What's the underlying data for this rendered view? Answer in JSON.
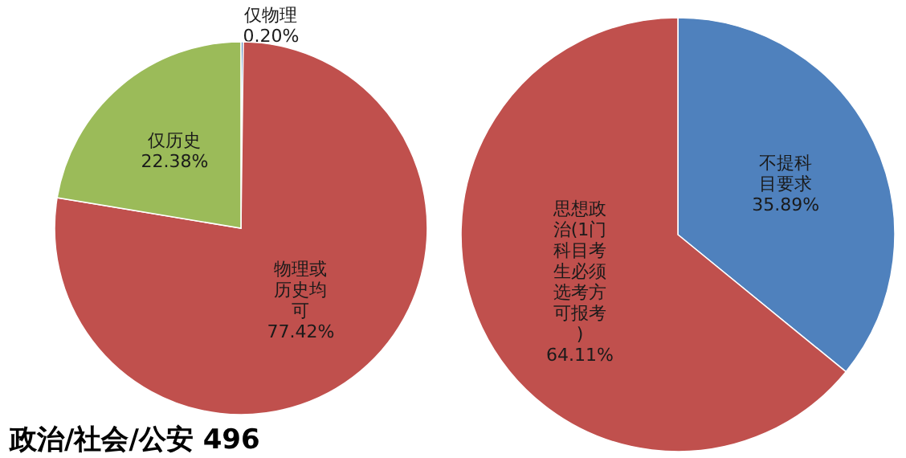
{
  "chart_data": [
    {
      "type": "pie",
      "title": "政治/社会/公安 496",
      "categories": [
        "仅物理",
        "物理或历史均可",
        "仅历史"
      ],
      "values": [
        0.2,
        77.42,
        22.38
      ],
      "value_labels": [
        "0.20%",
        "77.42%",
        "22.38%"
      ],
      "colors": [
        "#4f81bd",
        "#c0504d",
        "#9bbb59"
      ]
    },
    {
      "type": "pie",
      "categories": [
        "不提科目要求",
        "思想政治(1门科目考生必须选考方可报考)"
      ],
      "values": [
        35.89,
        64.11
      ],
      "value_labels": [
        "35.89%",
        "64.11%"
      ],
      "colors": [
        "#4f81bd",
        "#c0504d"
      ]
    }
  ]
}
